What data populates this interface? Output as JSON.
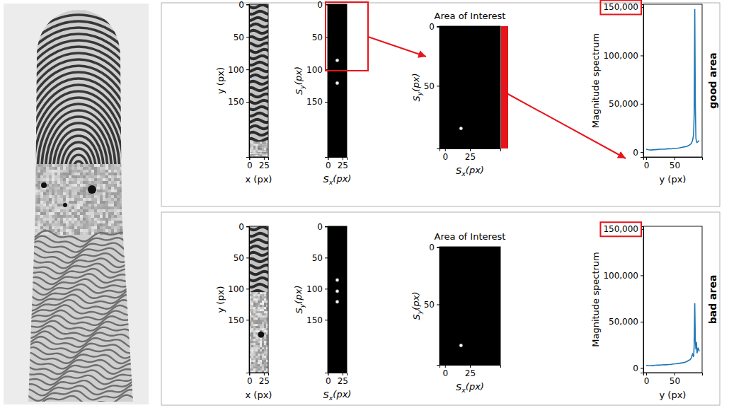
{
  "chart_data": [
    {
      "type": "image",
      "xlabel": "x (px)",
      "ylabel": "y (px)",
      "xlim": [
        -0.5,
        32.5
      ],
      "ylim": [
        -0.5,
        235
      ],
      "xticks": [
        0,
        25
      ],
      "yticks": [
        0,
        50,
        100,
        150
      ]
    },
    {
      "type": "spectrum",
      "xlabel": "Sx(px)",
      "ylabel": "Sy(px)",
      "xlim": [
        -0.5,
        32.5
      ],
      "ylim": [
        -0.5,
        235
      ],
      "xticks": [
        0,
        25
      ],
      "yticks": [
        0,
        50,
        100,
        150
      ],
      "peaks": {
        "x": [
          16,
          16
        ],
        "y": [
          86,
          121
        ]
      }
    },
    {
      "type": "spectrum",
      "title": "Area of Interest",
      "xlabel": "Sx(px)",
      "ylabel": "Sy(px)",
      "xlim": [
        -5.5,
        55.5
      ],
      "ylim": [
        -0.5,
        103
      ],
      "xticks": [
        0,
        25
      ],
      "yticks": [
        0,
        50
      ],
      "peaks": {
        "x": [
          16
        ],
        "y": [
          86
        ]
      }
    },
    {
      "type": "line",
      "annotation": "good area",
      "xlabel": "y (px)",
      "ylabel": "Magnitude spectrum",
      "xlim": [
        -5,
        99
      ],
      "ylim": [
        -5000,
        153000
      ],
      "xticks": [
        0,
        50
      ],
      "yticks": [
        0,
        {
          "value": 50000,
          "label": "50,000"
        },
        {
          "value": 100000,
          "label": "100,000"
        },
        {
          "value": 150000,
          "label": "150,000"
        }
      ],
      "color": "#1f77b4",
      "x": [
        0,
        4,
        8,
        12,
        16,
        20,
        24,
        28,
        32,
        36,
        40,
        44,
        48,
        52,
        56,
        60,
        64,
        68,
        72,
        76,
        78,
        80,
        82,
        84,
        85,
        86,
        87,
        88,
        89,
        90,
        92,
        94
      ],
      "values": [
        3000,
        2500,
        2200,
        2400,
        2600,
        2800,
        3000,
        3100,
        3000,
        3300,
        3500,
        3400,
        3800,
        4000,
        4200,
        4500,
        5000,
        5500,
        6000,
        7000,
        8000,
        9000,
        12000,
        18000,
        40000,
        148000,
        50000,
        15000,
        11000,
        10000,
        11000,
        12000
      ]
    },
    {
      "type": "image",
      "xlabel": "x (px)",
      "ylabel": "y (px)",
      "xlim": [
        -0.5,
        32.5
      ],
      "ylim": [
        -0.5,
        235
      ],
      "xticks": [
        0,
        25
      ],
      "yticks": [
        0,
        50,
        100,
        150
      ]
    },
    {
      "type": "spectrum",
      "xlabel": "Sx(px)",
      "ylabel": "Sy(px)",
      "xlim": [
        -0.5,
        32.5
      ],
      "ylim": [
        -0.5,
        235
      ],
      "xticks": [
        0,
        25
      ],
      "yticks": [
        0,
        50,
        100,
        150
      ],
      "peaks": {
        "x": [
          16,
          16,
          16
        ],
        "y": [
          86,
          104,
          121
        ]
      }
    },
    {
      "type": "spectrum",
      "title": "Area of Interest",
      "xlabel": "Sx(px)",
      "ylabel": "Sy(px)",
      "xlim": [
        -5.5,
        55.5
      ],
      "ylim": [
        -0.5,
        103
      ],
      "xticks": [
        0,
        25
      ],
      "yticks": [
        0,
        50
      ],
      "peaks": {
        "x": [
          16
        ],
        "y": [
          86
        ]
      }
    },
    {
      "type": "line",
      "annotation": "bad area",
      "xlabel": "y (px)",
      "ylabel": "Magnitude spectrum",
      "xlim": [
        -5,
        99
      ],
      "ylim": [
        -5000,
        153000
      ],
      "xticks": [
        0,
        50
      ],
      "yticks": [
        0,
        {
          "value": 50000,
          "label": "50,000"
        },
        {
          "value": 100000,
          "label": "100,000"
        },
        {
          "value": 150000,
          "label": "150,000"
        }
      ],
      "color": "#1f77b4",
      "x": [
        0,
        4,
        8,
        12,
        16,
        20,
        24,
        28,
        32,
        36,
        40,
        44,
        48,
        52,
        56,
        60,
        64,
        68,
        72,
        76,
        78,
        80,
        82,
        84,
        85,
        86,
        87,
        88,
        89,
        90,
        92,
        94
      ],
      "values": [
        2800,
        2600,
        2400,
        2700,
        3000,
        3200,
        3100,
        3400,
        3600,
        3500,
        3800,
        4000,
        4300,
        4500,
        4800,
        5200,
        5600,
        6000,
        7000,
        8500,
        9000,
        11000,
        15000,
        12000,
        25000,
        70000,
        30000,
        20000,
        28000,
        16000,
        22000,
        18000
      ]
    }
  ]
}
